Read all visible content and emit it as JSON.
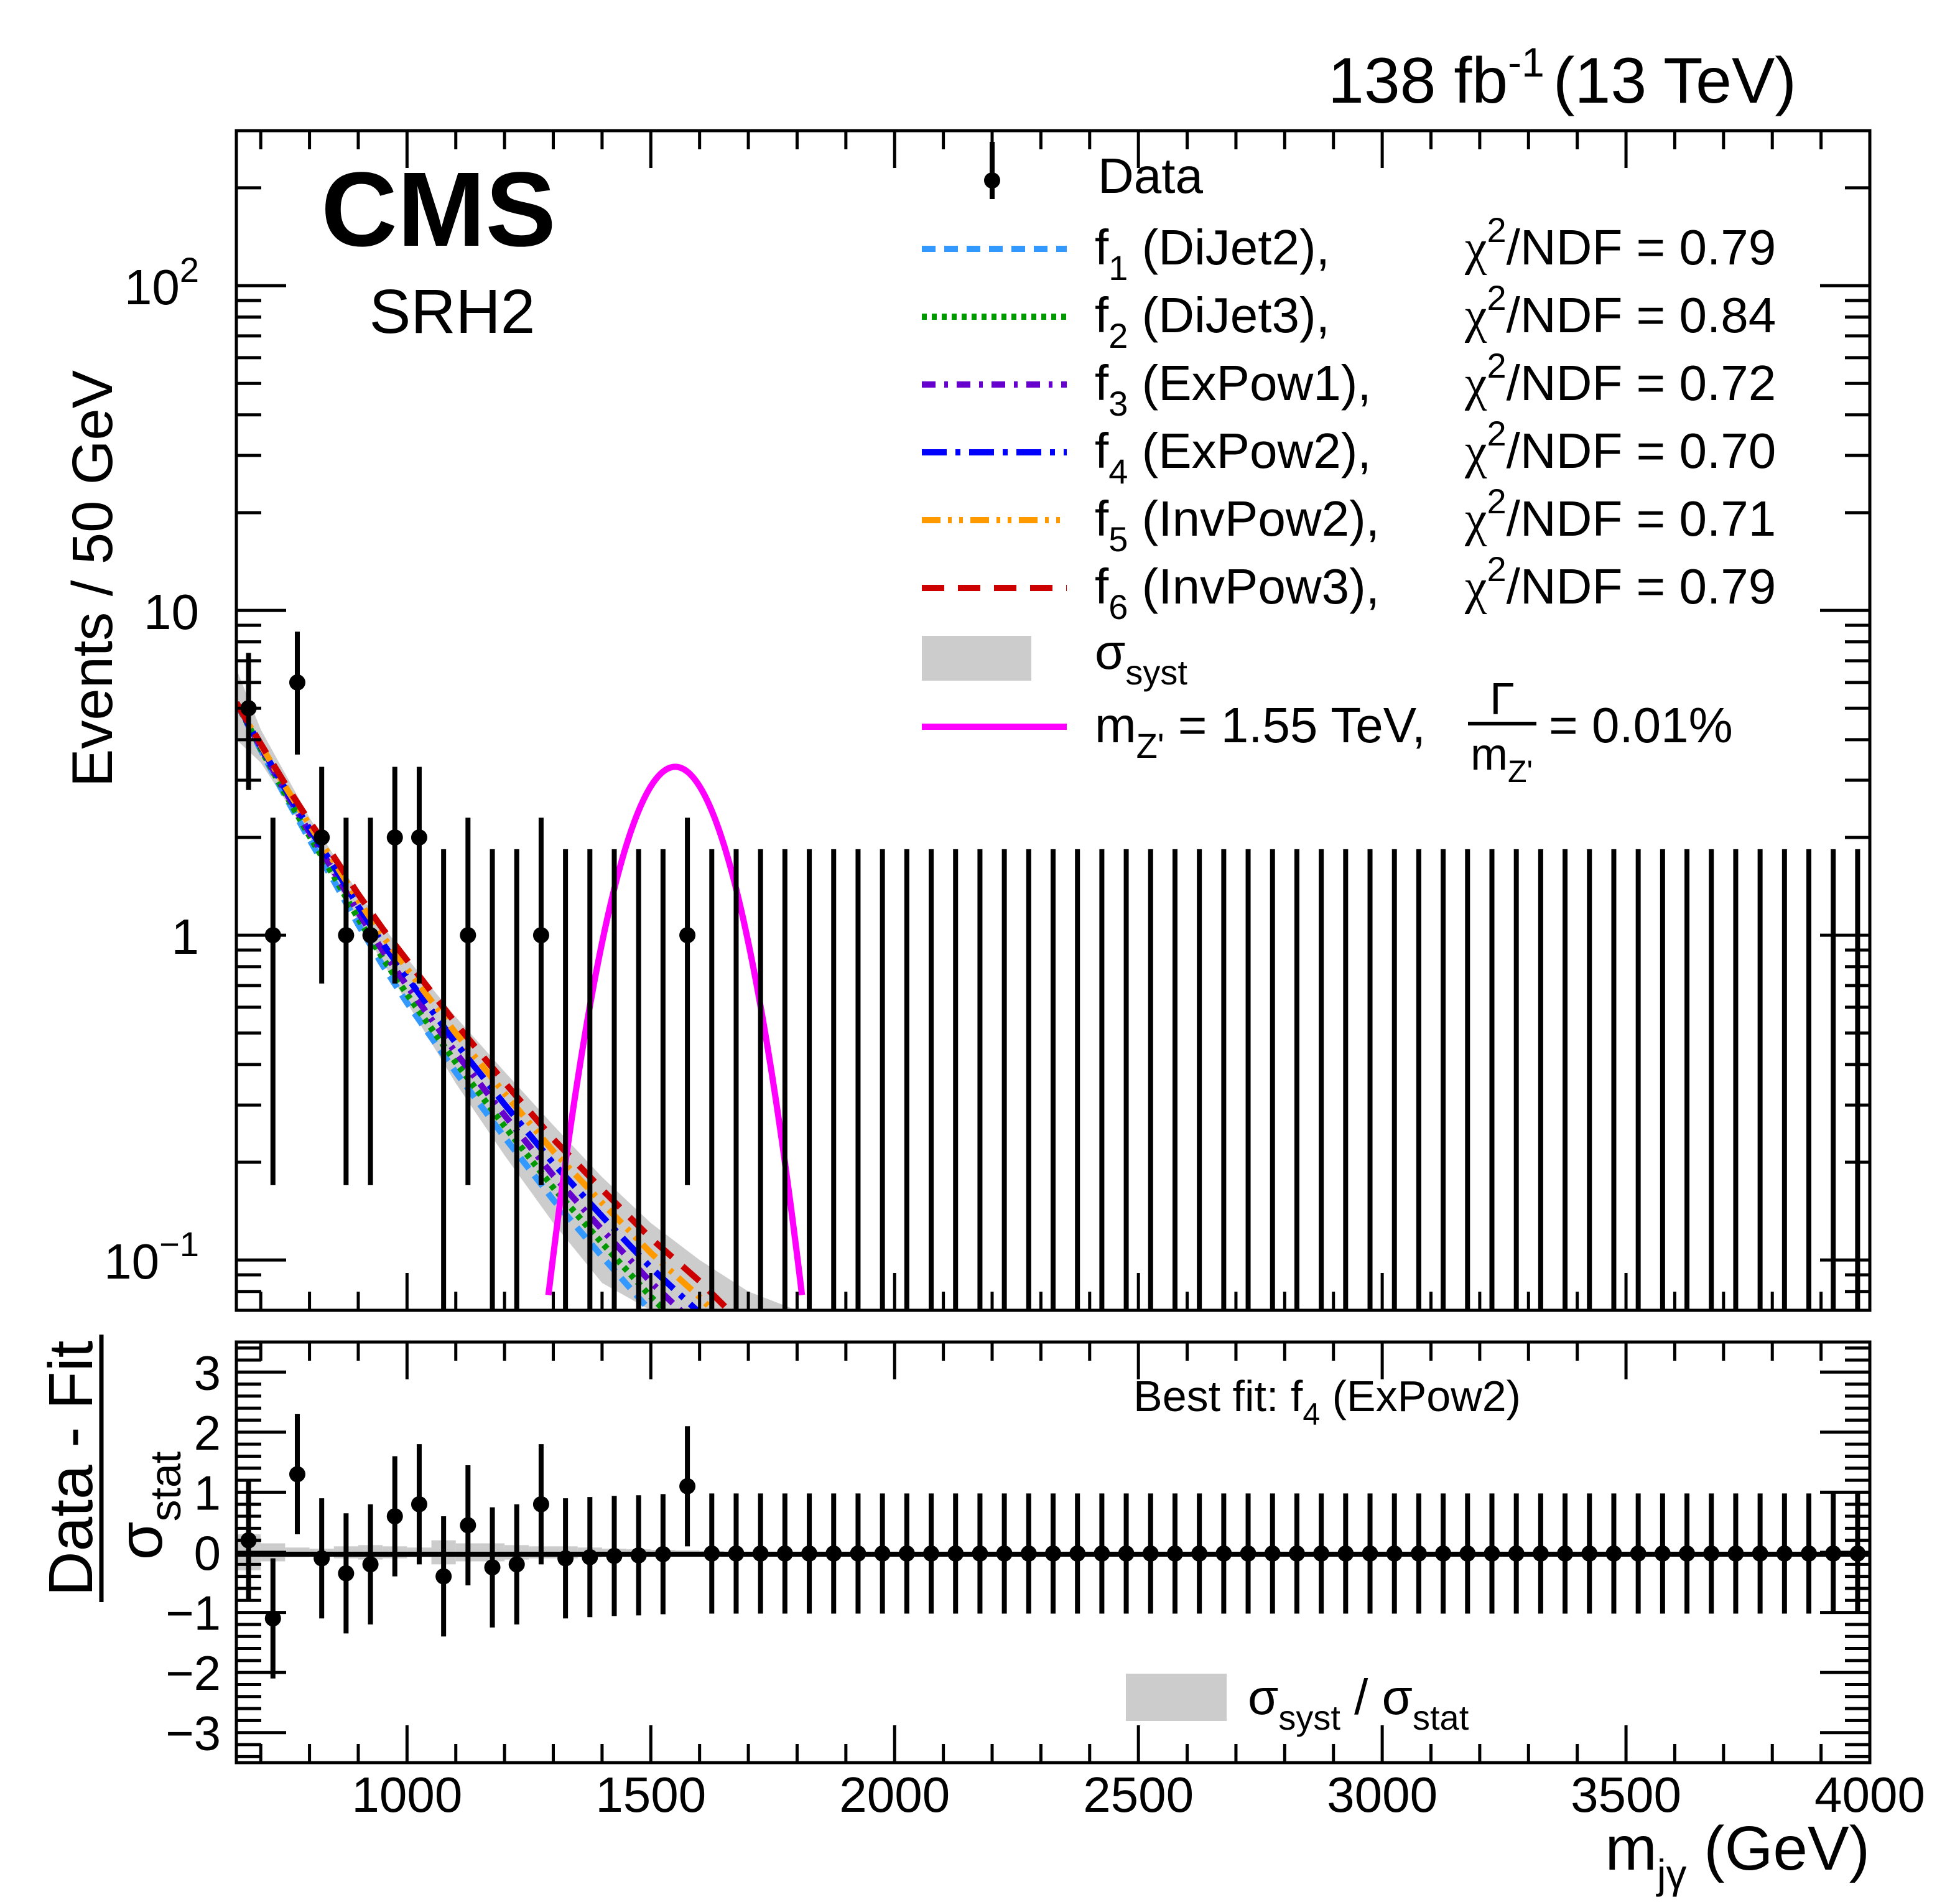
{
  "header": {
    "lumi_label": "138 fb",
    "lumi_sup": "-1",
    "energy_label": "(13 TeV)",
    "experiment": "CMS",
    "region": "SRH2"
  },
  "chart_data": [
    {
      "type": "scatter",
      "panel": "upper",
      "title": "",
      "xlabel": "m_jγ (GeV)",
      "ylabel": "Events / 50 GeV",
      "yscale": "log",
      "xlim": [
        650,
        4000
      ],
      "ylim": [
        0.07,
        300
      ],
      "y_ticks": [
        {
          "value": 0.1,
          "label": "10",
          "sup": "−1"
        },
        {
          "value": 1,
          "label": "1",
          "sup": ""
        },
        {
          "value": 10,
          "label": "10",
          "sup": ""
        },
        {
          "value": 100,
          "label": "10",
          "sup": "2"
        }
      ],
      "bin_width": 50,
      "data": {
        "name": "Data",
        "x": [
          675,
          725,
          775,
          825,
          875,
          925,
          975,
          1025,
          1075,
          1125,
          1175,
          1225,
          1275,
          1325,
          1375,
          1425,
          1475,
          1525,
          1575,
          1625,
          1675,
          1725,
          1775,
          1825,
          1875,
          1925,
          1975,
          2025,
          2075,
          2125,
          2175,
          2225,
          2275,
          2325,
          2375,
          2425,
          2475,
          2525,
          2575,
          2625,
          2675,
          2725,
          2775,
          2825,
          2875,
          2925,
          2975,
          3025,
          3075,
          3125,
          3175,
          3225,
          3275,
          3325,
          3375,
          3425,
          3475,
          3525,
          3575,
          3625,
          3675,
          3725,
          3775,
          3825,
          3875,
          3925,
          3975
        ],
        "y": [
          5,
          1,
          6,
          2,
          1,
          1,
          2,
          2,
          0,
          1,
          0,
          0,
          1,
          0,
          0,
          0,
          0,
          0,
          1,
          0,
          0,
          0,
          0,
          0,
          0,
          0,
          0,
          0,
          0,
          0,
          0,
          0,
          0,
          0,
          0,
          0,
          0,
          0,
          0,
          0,
          0,
          0,
          0,
          0,
          0,
          0,
          0,
          0,
          0,
          0,
          0,
          0,
          0,
          0,
          0,
          0,
          0,
          0,
          0,
          0,
          0,
          0,
          0,
          0,
          0,
          0,
          0
        ]
      },
      "fits": [
        {
          "id": "f1",
          "name": "DiJet2",
          "chi2_ndf": "0.79",
          "color": "#3399ff",
          "style": "dashed"
        },
        {
          "id": "f2",
          "name": "DiJet3",
          "chi2_ndf": "0.84",
          "color": "#009900",
          "style": "dotted"
        },
        {
          "id": "f3",
          "name": "ExPow1",
          "chi2_ndf": "0.72",
          "color": "#6600cc",
          "style": "dash-dot"
        },
        {
          "id": "f4",
          "name": "ExPow2",
          "chi2_ndf": "0.70",
          "color": "#0000ff",
          "style": "long-dash-dot"
        },
        {
          "id": "f5",
          "name": "InvPow2",
          "chi2_ndf": "0.71",
          "color": "#ff9900",
          "style": "dash-dot-dot"
        },
        {
          "id": "f6",
          "name": "InvPow3",
          "chi2_ndf": "0.79",
          "color": "#cc0000",
          "style": "long-dash"
        }
      ],
      "fit_curve": {
        "x": [
          650,
          700,
          750,
          800,
          850,
          900,
          950,
          1000,
          1100,
          1200,
          1300,
          1400,
          1500,
          1600,
          1700
        ],
        "y": [
          5.2,
          3.8,
          2.8,
          2.1,
          1.6,
          1.2,
          0.92,
          0.72,
          0.45,
          0.29,
          0.19,
          0.13,
          0.09,
          0.065,
          0.045
        ]
      },
      "syst_band": {
        "x": [
          650,
          700,
          800,
          900,
          1000,
          1100,
          1200,
          1300,
          1400,
          1500,
          1600,
          1700,
          1800,
          1900
        ],
        "low": [
          4.0,
          3.4,
          2.0,
          1.1,
          0.62,
          0.35,
          0.21,
          0.13,
          0.085,
          0.055,
          0.035,
          0.022,
          0.014,
          0.009
        ],
        "high": [
          6.6,
          4.3,
          2.3,
          1.35,
          0.85,
          0.56,
          0.38,
          0.26,
          0.18,
          0.13,
          0.1,
          0.08,
          0.065,
          0.055
        ]
      },
      "signal": {
        "label_mass": "m",
        "label_mass_sub": "Z'",
        "label_value": " = 1.55 TeV,",
        "width_num": "Γ",
        "width_den": "m",
        "width_den_sub": "Z'",
        "width_value": "= 0.01%",
        "color": "#ff00ff",
        "mass": 1550,
        "peak": 3.3,
        "sigma": 95
      },
      "legend": {
        "data": "Data",
        "syst": "σ",
        "syst_sub": "syst",
        "chi2_label": "χ",
        "chi2_rest": "/NDF = ",
        "position": "top-right"
      }
    },
    {
      "type": "scatter",
      "panel": "lower",
      "ylabel_num": "Data - Fit",
      "ylabel_den": "σ",
      "ylabel_den_sub": "stat",
      "xlabel": "m",
      "xlabel_sub": "jγ",
      "xlabel_unit": " (GeV)",
      "xlim": [
        650,
        4000
      ],
      "ylim": [
        -3.5,
        3.5
      ],
      "y_ticks": [
        "−3",
        "−2",
        "−1",
        "0",
        "1",
        "2",
        "3"
      ],
      "x_ticks": [
        "1000",
        "1500",
        "2000",
        "2500",
        "3000",
        "3500",
        "4000"
      ],
      "best_fit_label": "Best fit: f",
      "best_fit_sub": "4",
      "best_fit_rest": " (ExPow2)",
      "legend_syst": "σ",
      "legend_syst_sub": "syst",
      "legend_sep": " / ",
      "legend_stat": "σ",
      "legend_stat_sub": "stat",
      "pulls": [
        0.2,
        -1.1,
        1.3,
        -0.1,
        -0.35,
        -0.2,
        0.6,
        0.8,
        -0.4,
        0.45,
        -0.25,
        -0.2,
        0.8,
        -0.1,
        -0.08,
        -0.06,
        -0.05,
        -0.03,
        1.1,
        -0.02,
        -0.02,
        -0.02,
        -0.02,
        -0.02,
        -0.02,
        -0.02,
        -0.02,
        -0.02,
        -0.02,
        -0.02,
        -0.02,
        -0.02,
        -0.02,
        -0.02,
        -0.02,
        -0.02,
        -0.02,
        -0.02,
        -0.02,
        -0.02,
        -0.02,
        -0.02,
        -0.02,
        -0.02,
        -0.02,
        -0.02,
        -0.02,
        -0.02,
        -0.02,
        -0.02,
        -0.02,
        -0.02,
        -0.02,
        -0.02,
        -0.02,
        -0.02,
        -0.02,
        -0.02,
        -0.02,
        -0.02,
        -0.02,
        -0.02,
        -0.02,
        -0.02,
        -0.02,
        -0.02,
        -0.02
      ],
      "syst_ratio": [
        0.3,
        0.15,
        0.08,
        0.06,
        0.1,
        0.12,
        0.1,
        0.08,
        0.2,
        0.15,
        0.15,
        0.12,
        0.1,
        0.1,
        0.08,
        0.06,
        0.05,
        0.04,
        0.03,
        0.02
      ]
    }
  ]
}
